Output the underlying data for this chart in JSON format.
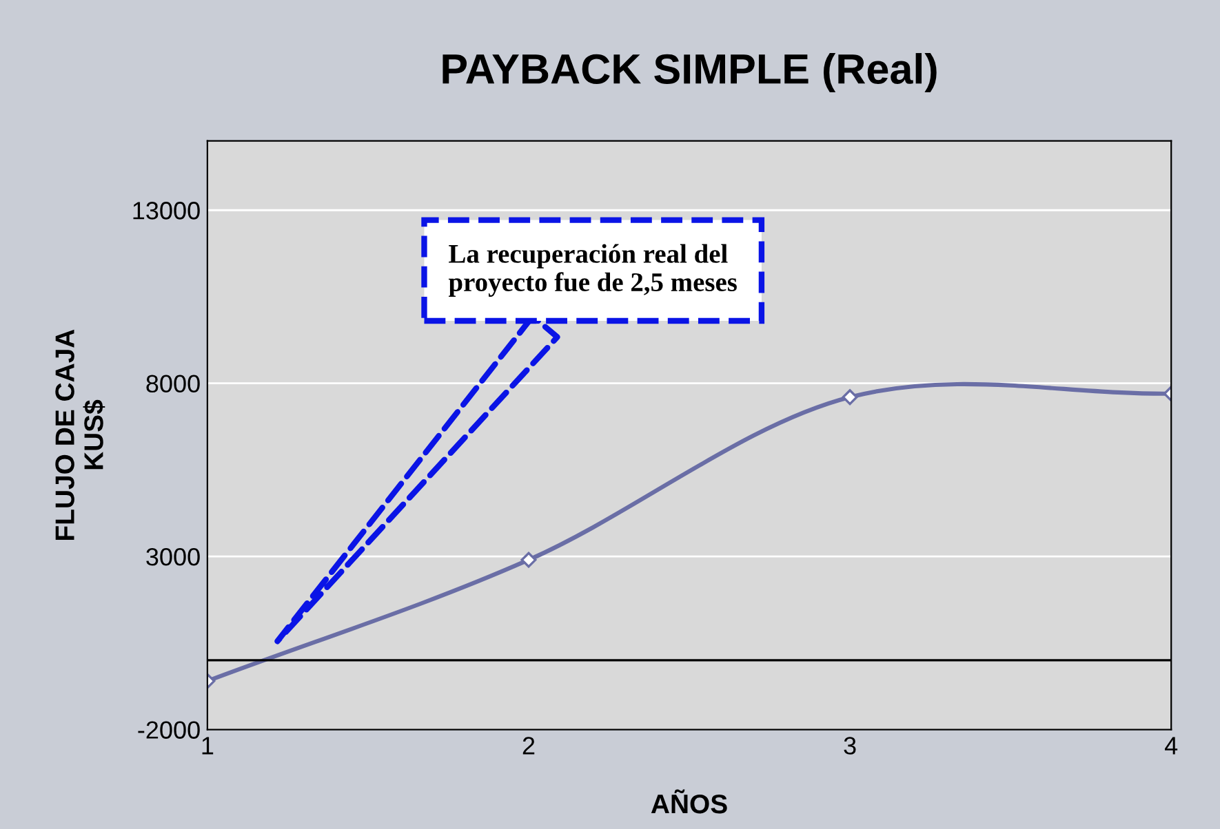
{
  "chart_data": {
    "type": "line",
    "title": "PAYBACK SIMPLE (Real)",
    "xlabel": "AÑOS",
    "ylabel": "FLUJO DE CAJA\nKUS$",
    "x": [
      1,
      2,
      3,
      4
    ],
    "series": [
      {
        "color": "#6a6ea6",
        "values": [
          -600,
          2900,
          7600,
          7700
        ]
      }
    ],
    "xlim": [
      1,
      4
    ],
    "xticks": [
      1,
      2,
      3,
      4
    ],
    "ylim": [
      -2000,
      15000
    ],
    "yticks": [
      -2000,
      3000,
      8000,
      13000
    ],
    "grid": "y",
    "marker": "diamond",
    "line_style": "solid",
    "ref_lines": [
      {
        "axis": "y",
        "value": 0,
        "color": "#000000",
        "line_style": "solid"
      }
    ],
    "annotations": [
      "La recuperación real del\nproyecto fue de 2,5 meses"
    ]
  }
}
